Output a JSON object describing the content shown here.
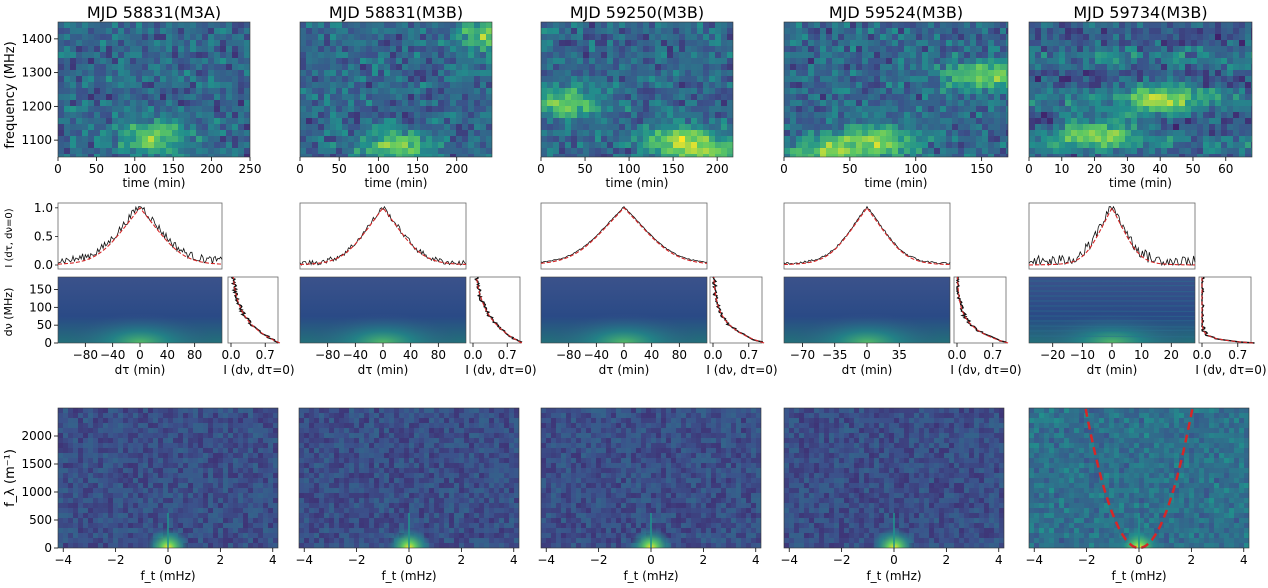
{
  "y_labels": {
    "dynspec": "frequency (MHz)",
    "acf_time": "I (dτ, dν=0)",
    "acf_freq": "dν (MHz)",
    "secondary": "f_λ (m⁻¹)"
  },
  "x_labels": {
    "dynspec": "time (min)",
    "acf_time": "dτ (min)",
    "acf_freq": "I (dν, dτ=0)",
    "secondary": "f_t (mHz)"
  },
  "colormap": [
    "#440154",
    "#3b528b",
    "#21918c",
    "#5ec962",
    "#fde725"
  ],
  "fit_color": "#d62728",
  "chart_data": [
    {
      "type": "heatmap",
      "title": "MJD 58831(M3A)",
      "dynspec": {
        "xlim": [
          0,
          250
        ],
        "xticks": [
          0,
          50,
          100,
          150,
          200,
          250
        ],
        "ylim": [
          1050,
          1450
        ],
        "yticks": [
          1100,
          1200,
          1300,
          1400
        ],
        "features": [
          [
            120,
            1120
          ]
        ]
      },
      "acf_time": {
        "xlim": [
          -120,
          120
        ],
        "yticks": [
          0.0,
          0.5,
          1.0
        ],
        "width": 60,
        "noise": 0.07
      },
      "acf_2d": {
        "xticks": [
          -80,
          -40,
          0,
          40,
          80
        ],
        "yticks": [
          0,
          50,
          100,
          150
        ],
        "ylim": [
          0,
          185
        ]
      },
      "acf_freq": {
        "xticks": [
          0.0,
          0.7
        ],
        "scale": 60
      },
      "secondary": {
        "xlim": [
          -4.2,
          4.2
        ],
        "xticks": [
          -4,
          -2,
          0,
          2,
          4
        ],
        "ylim": [
          0,
          2500
        ],
        "yticks": [
          0,
          500,
          1000,
          1500,
          2000
        ],
        "arc": false
      }
    },
    {
      "type": "heatmap",
      "title": "MJD 58831(M3B)",
      "dynspec": {
        "xlim": [
          0,
          245
        ],
        "xticks": [
          0,
          50,
          100,
          150,
          200
        ],
        "ylim": [
          1050,
          1450
        ],
        "yticks": [],
        "features": [
          [
            240,
            1420
          ],
          [
            120,
            1090
          ]
        ]
      },
      "acf_time": {
        "xlim": [
          -120,
          120
        ],
        "yticks": [],
        "width": 55,
        "noise": 0.05
      },
      "acf_2d": {
        "xticks": [
          -80,
          -40,
          0,
          40,
          80
        ],
        "yticks": [],
        "ylim": [
          0,
          185
        ]
      },
      "acf_freq": {
        "xticks": [
          0.0,
          0.7
        ],
        "scale": 70
      },
      "secondary": {
        "xlim": [
          -4.2,
          4.2
        ],
        "xticks": [
          -4,
          -2,
          0,
          2,
          4
        ],
        "ylim": [
          0,
          2500
        ],
        "yticks": [],
        "arc": false
      }
    },
    {
      "type": "heatmap",
      "title": "MJD 59250(M3B)",
      "dynspec": {
        "xlim": [
          0,
          218
        ],
        "xticks": [
          0,
          50,
          100,
          150,
          200
        ],
        "ylim": [
          1050,
          1450
        ],
        "yticks": [],
        "features": [
          [
            30,
            1220
          ],
          [
            150,
            1110
          ],
          [
            190,
            1070
          ]
        ]
      },
      "acf_time": {
        "xlim": [
          -120,
          120
        ],
        "yticks": [],
        "width": 70,
        "noise": 0.01
      },
      "acf_2d": {
        "xticks": [
          -80,
          -40,
          0,
          40,
          80
        ],
        "yticks": [],
        "ylim": [
          0,
          185
        ]
      },
      "acf_freq": {
        "xticks": [
          0.0,
          0.7
        ],
        "scale": 45
      },
      "secondary": {
        "xlim": [
          -4.2,
          4.2
        ],
        "xticks": [
          -4,
          -2,
          0,
          2,
          4
        ],
        "ylim": [
          0,
          2500
        ],
        "yticks": [],
        "arc": false
      }
    },
    {
      "type": "heatmap",
      "title": "MJD 59524(M3B)",
      "dynspec": {
        "xlim": [
          0,
          170
        ],
        "xticks": [
          0,
          50,
          100,
          150
        ],
        "ylim": [
          1050,
          1450
        ],
        "yticks": [],
        "features": [
          [
            150,
            1300
          ],
          [
            70,
            1110
          ],
          [
            30,
            1070
          ]
        ]
      },
      "acf_time": {
        "xlim": [
          -90,
          90
        ],
        "yticks": [],
        "width": 40,
        "noise": 0.02
      },
      "acf_2d": {
        "xticks": [
          -70,
          -35,
          0,
          35
        ],
        "yticks": [],
        "ylim": [
          0,
          185
        ]
      },
      "acf_freq": {
        "xticks": [
          0.0,
          0.7
        ],
        "scale": 40
      },
      "secondary": {
        "xlim": [
          -4.2,
          4.2
        ],
        "xticks": [
          -4,
          -2,
          0,
          2,
          4
        ],
        "ylim": [
          0,
          2500
        ],
        "yticks": [],
        "arc": false
      }
    },
    {
      "type": "heatmap",
      "title": "MJD 59734(M3B)",
      "dynspec": {
        "xlim": [
          0,
          68
        ],
        "xticks": [
          0,
          10,
          20,
          30,
          40,
          50,
          60
        ],
        "ylim": [
          1050,
          1450
        ],
        "yticks": [],
        "features": [
          [
            40,
            1230
          ],
          [
            20,
            1130
          ]
        ]
      },
      "acf_time": {
        "xlim": [
          -28,
          28
        ],
        "yticks": [],
        "width": 9,
        "noise": 0.1
      },
      "acf_2d": {
        "xticks": [
          -20,
          -10,
          0,
          10,
          20
        ],
        "yticks": [],
        "ylim": [
          0,
          185
        ]
      },
      "acf_freq": {
        "xticks": [
          0.0,
          0.7
        ],
        "scale": 10
      },
      "secondary": {
        "xlim": [
          -4.2,
          4.2
        ],
        "xticks": [
          -4,
          -2,
          0,
          2,
          4
        ],
        "ylim": [
          0,
          2500
        ],
        "yticks": [],
        "arc": true,
        "arc_curvature": 600,
        "arc_offset": 0
      }
    }
  ]
}
